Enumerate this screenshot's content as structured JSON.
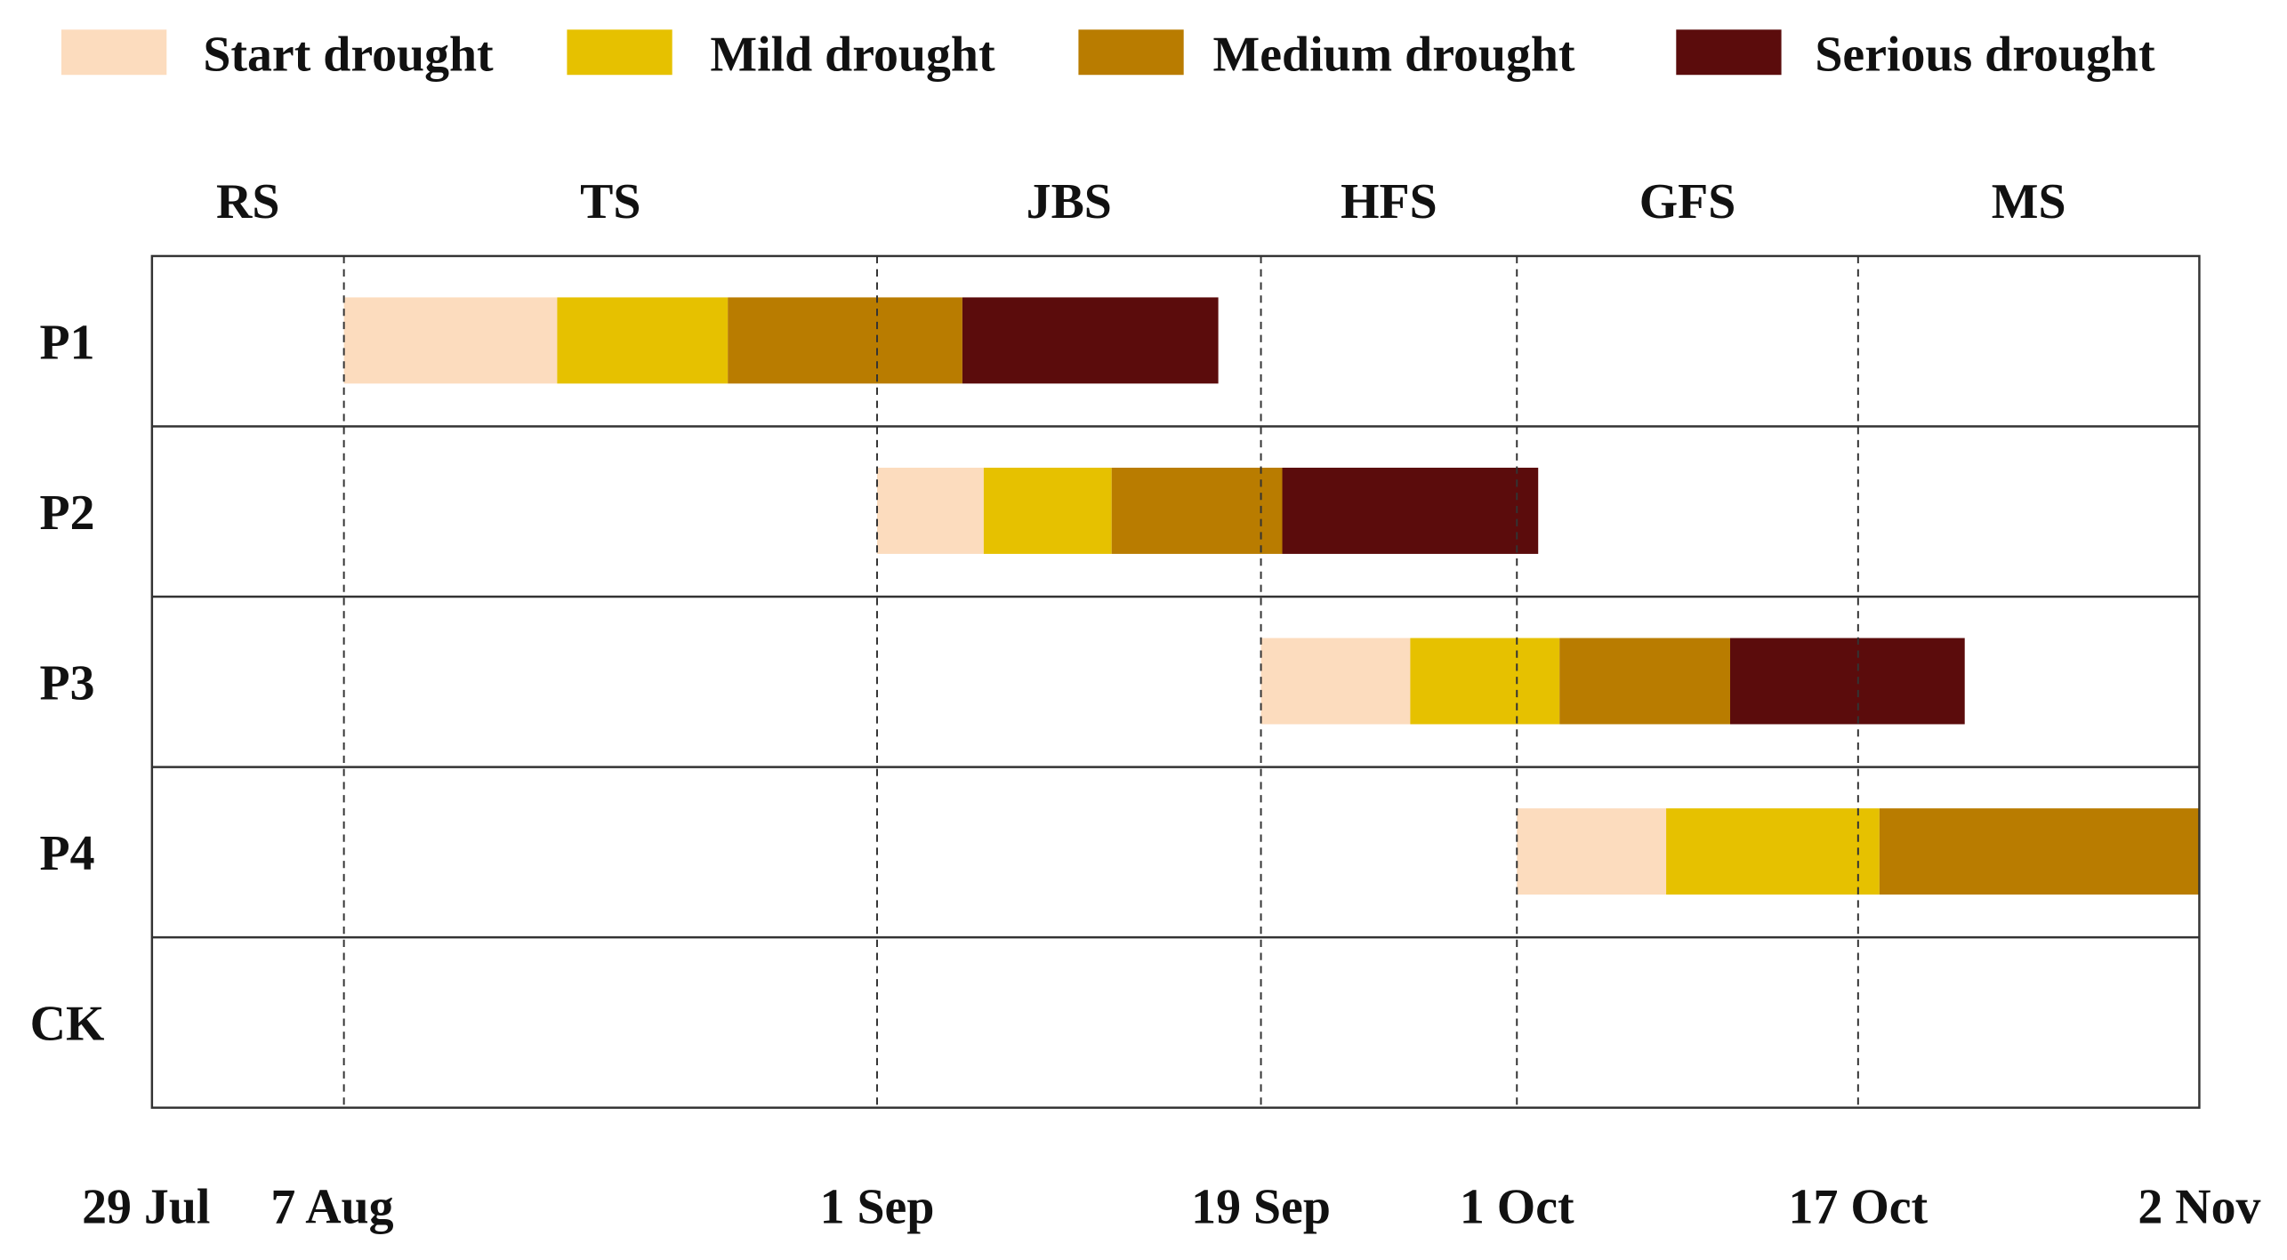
{
  "chart_data": {
    "type": "gantt",
    "title": "",
    "x_unit": "days since 29 Jul",
    "xlim": [
      0,
      96
    ],
    "date_ticks": [
      {
        "label": "29 Jul",
        "day": 0
      },
      {
        "label": "7 Aug",
        "day": 9
      },
      {
        "label": "1 Sep",
        "day": 34
      },
      {
        "label": "19 Sep",
        "day": 52
      },
      {
        "label": "1 Oct",
        "day": 64
      },
      {
        "label": "17 Oct",
        "day": 80
      },
      {
        "label": "2 Nov",
        "day": 96
      }
    ],
    "stages": [
      {
        "label": "RS",
        "start": 0,
        "end": 9
      },
      {
        "label": "TS",
        "start": 9,
        "end": 34
      },
      {
        "label": "JBS",
        "start": 34,
        "end": 52
      },
      {
        "label": "HFS",
        "start": 52,
        "end": 64
      },
      {
        "label": "GFS",
        "start": 64,
        "end": 80
      },
      {
        "label": "MS",
        "start": 80,
        "end": 96
      }
    ],
    "legend": [
      {
        "label": "Start drought",
        "color": "#fcdcbe"
      },
      {
        "label": "Mild drought",
        "color": "#e6c100"
      },
      {
        "label": "Medium drought",
        "color": "#b97c00"
      },
      {
        "label": "Serious drought",
        "color": "#5b0c0c"
      }
    ],
    "legend_placement": "top",
    "rows": [
      {
        "label": "P1",
        "segments": [
          [
            9,
            19
          ],
          [
            19,
            27
          ],
          [
            27,
            38
          ],
          [
            38,
            50
          ]
        ]
      },
      {
        "label": "P2",
        "segments": [
          [
            34,
            39
          ],
          [
            39,
            45
          ],
          [
            45,
            53
          ],
          [
            53,
            65
          ]
        ]
      },
      {
        "label": "P3",
        "segments": [
          [
            52,
            59
          ],
          [
            59,
            66
          ],
          [
            66,
            74
          ],
          [
            74,
            85
          ]
        ]
      },
      {
        "label": "P4",
        "segments": [
          [
            64,
            71
          ],
          [
            71,
            81
          ],
          [
            81,
            96
          ]
        ]
      },
      {
        "label": "CK",
        "segments": []
      }
    ]
  }
}
